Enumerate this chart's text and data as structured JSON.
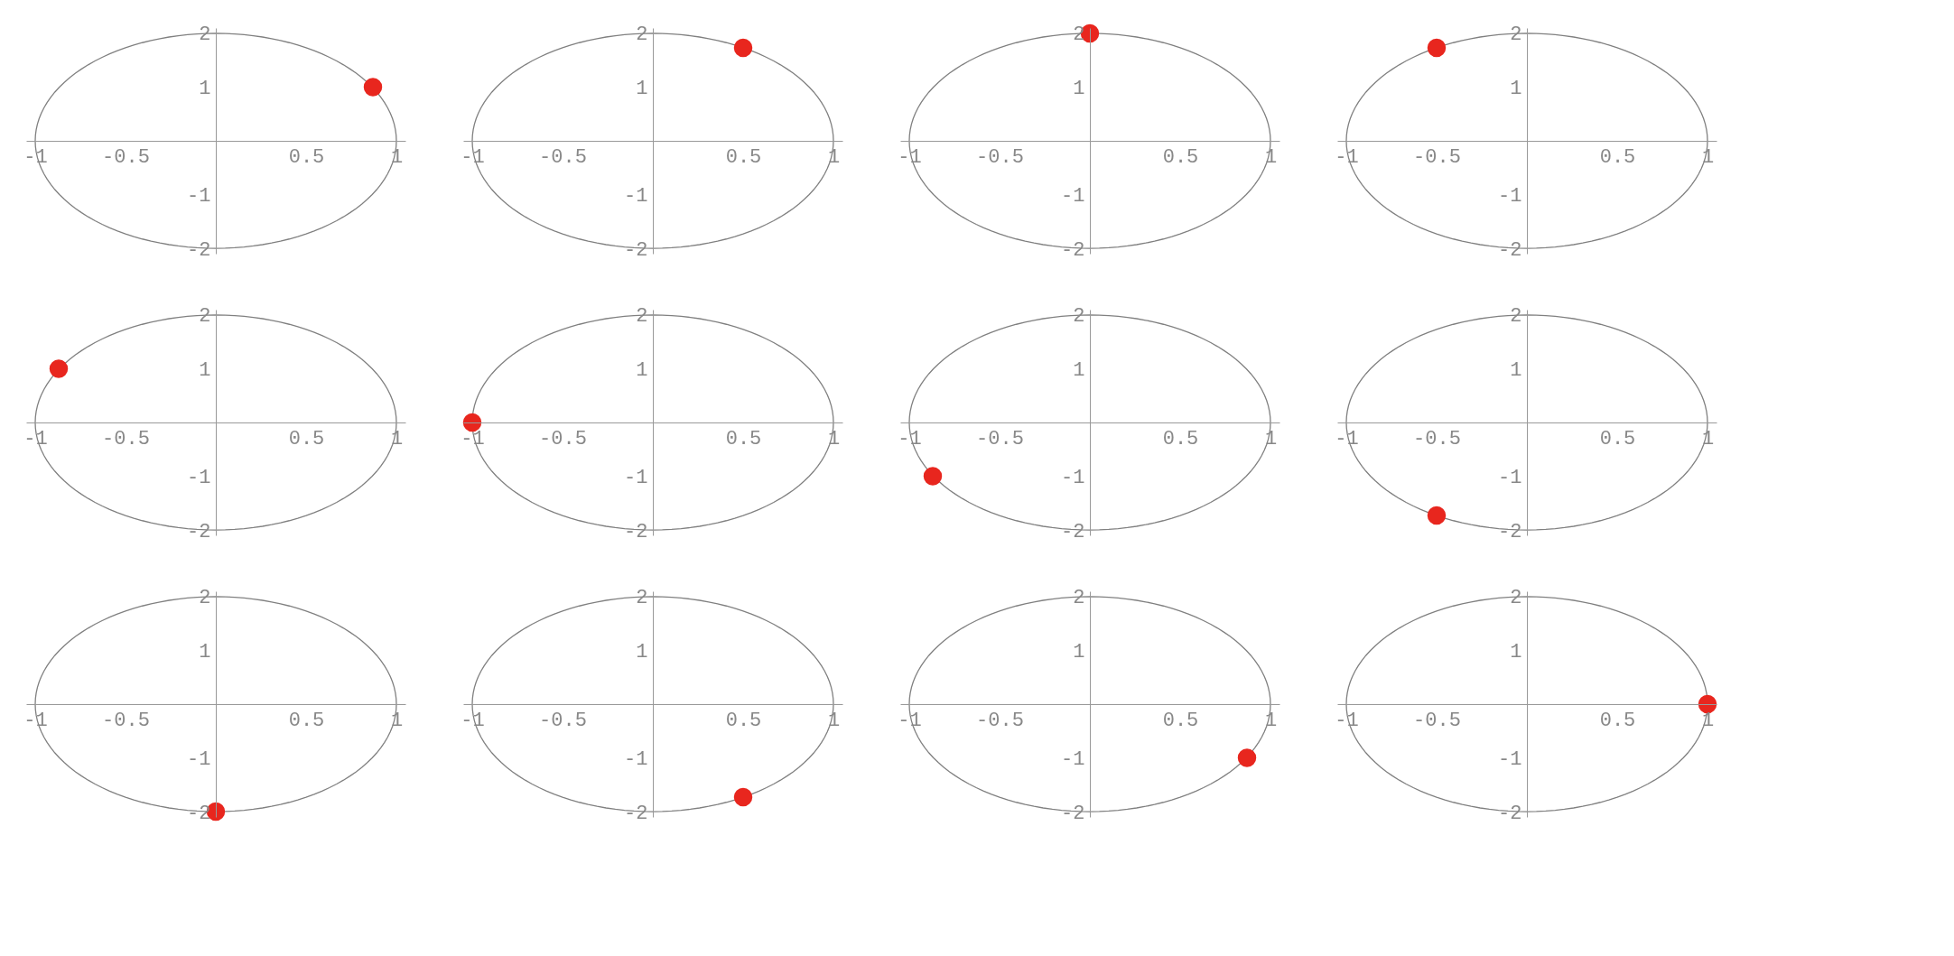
{
  "chart_data": [
    {
      "type": "scatter",
      "xlim": [
        -1.05,
        1.05
      ],
      "ylim": [
        -2.1,
        2.1
      ],
      "xticks": [
        -1,
        -0.5,
        0.5,
        1
      ],
      "yticks": [
        -2,
        -1,
        1,
        2
      ],
      "grid": false,
      "series": [
        {
          "color": "#e8261e",
          "x": [
            0.87
          ],
          "values": [
            1
          ]
        }
      ]
    },
    {
      "type": "scatter",
      "xlim": [
        -1.05,
        1.05
      ],
      "ylim": [
        -2.1,
        2.1
      ],
      "xticks": [
        -1,
        -0.5,
        0.5,
        1
      ],
      "yticks": [
        -2,
        -1,
        1,
        2
      ],
      "grid": false,
      "series": [
        {
          "color": "#e8261e",
          "x": [
            0.5
          ],
          "values": [
            1.73
          ]
        }
      ]
    },
    {
      "type": "scatter",
      "xlim": [
        -1.05,
        1.05
      ],
      "ylim": [
        -2.1,
        2.1
      ],
      "xticks": [
        -1,
        -0.5,
        0.5,
        1
      ],
      "yticks": [
        -2,
        -1,
        1,
        2
      ],
      "grid": false,
      "series": [
        {
          "color": "#e8261e",
          "x": [
            0
          ],
          "values": [
            2
          ]
        }
      ]
    },
    {
      "type": "scatter",
      "xlim": [
        -1.05,
        1.05
      ],
      "ylim": [
        -2.1,
        2.1
      ],
      "xticks": [
        -1,
        -0.5,
        0.5,
        1
      ],
      "yticks": [
        -2,
        -1,
        1,
        2
      ],
      "grid": false,
      "series": [
        {
          "color": "#e8261e",
          "x": [
            -0.5
          ],
          "values": [
            1.73
          ]
        }
      ]
    },
    {
      "type": "scatter",
      "xlim": [
        -1.05,
        1.05
      ],
      "ylim": [
        -2.1,
        2.1
      ],
      "xticks": [
        -1,
        -0.5,
        0.5,
        1
      ],
      "yticks": [
        -2,
        -1,
        1,
        2
      ],
      "grid": false,
      "series": [
        {
          "color": "#e8261e",
          "x": [
            -0.87
          ],
          "values": [
            1
          ]
        }
      ]
    },
    {
      "type": "scatter",
      "xlim": [
        -1.05,
        1.05
      ],
      "ylim": [
        -2.1,
        2.1
      ],
      "xticks": [
        -1,
        -0.5,
        0.5,
        1
      ],
      "yticks": [
        -2,
        -1,
        1,
        2
      ],
      "grid": false,
      "series": [
        {
          "color": "#e8261e",
          "x": [
            -1
          ],
          "values": [
            0
          ]
        }
      ]
    },
    {
      "type": "scatter",
      "xlim": [
        -1.05,
        1.05
      ],
      "ylim": [
        -2.1,
        2.1
      ],
      "xticks": [
        -1,
        -0.5,
        0.5,
        1
      ],
      "yticks": [
        -2,
        -1,
        1,
        2
      ],
      "grid": false,
      "series": [
        {
          "color": "#e8261e",
          "x": [
            -0.87
          ],
          "values": [
            -1
          ]
        }
      ]
    },
    {
      "type": "scatter",
      "xlim": [
        -1.05,
        1.05
      ],
      "ylim": [
        -2.1,
        2.1
      ],
      "xticks": [
        -1,
        -0.5,
        0.5,
        1
      ],
      "yticks": [
        -2,
        -1,
        1,
        2
      ],
      "grid": false,
      "series": [
        {
          "color": "#e8261e",
          "x": [
            -0.5
          ],
          "values": [
            -1.73
          ]
        }
      ]
    },
    {
      "type": "scatter",
      "xlim": [
        -1.05,
        1.05
      ],
      "ylim": [
        -2.1,
        2.1
      ],
      "xticks": [
        -1,
        -0.5,
        0.5,
        1
      ],
      "yticks": [
        -2,
        -1,
        1,
        2
      ],
      "grid": false,
      "series": [
        {
          "color": "#e8261e",
          "x": [
            0
          ],
          "values": [
            -2
          ]
        }
      ]
    },
    {
      "type": "scatter",
      "xlim": [
        -1.05,
        1.05
      ],
      "ylim": [
        -2.1,
        2.1
      ],
      "xticks": [
        -1,
        -0.5,
        0.5,
        1
      ],
      "yticks": [
        -2,
        -1,
        1,
        2
      ],
      "grid": false,
      "series": [
        {
          "color": "#e8261e",
          "x": [
            0.5
          ],
          "values": [
            -1.73
          ]
        }
      ]
    },
    {
      "type": "scatter",
      "xlim": [
        -1.05,
        1.05
      ],
      "ylim": [
        -2.1,
        2.1
      ],
      "xticks": [
        -1,
        -0.5,
        0.5,
        1
      ],
      "yticks": [
        -2,
        -1,
        1,
        2
      ],
      "grid": false,
      "series": [
        {
          "color": "#e8261e",
          "x": [
            0.87
          ],
          "values": [
            -1
          ]
        }
      ]
    },
    {
      "type": "scatter",
      "xlim": [
        -1.05,
        1.05
      ],
      "ylim": [
        -2.1,
        2.1
      ],
      "xticks": [
        -1,
        -0.5,
        0.5,
        1
      ],
      "yticks": [
        -2,
        -1,
        1,
        2
      ],
      "grid": false,
      "series": [
        {
          "color": "#e8261e",
          "x": [
            1
          ],
          "values": [
            0
          ]
        }
      ]
    }
  ]
}
